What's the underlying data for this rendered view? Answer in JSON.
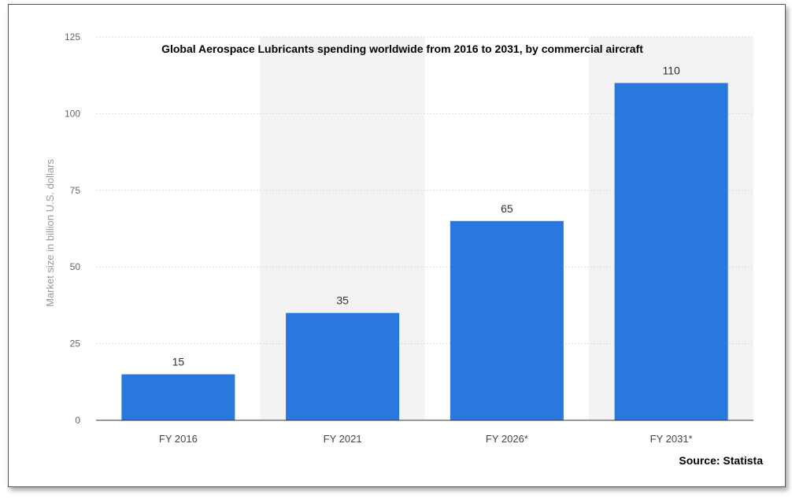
{
  "chart_data": {
    "type": "bar",
    "title": "Global Aerospace Lubricants spending worldwide from 2016 to 2031, by commercial aircraft",
    "xlabel": "",
    "ylabel": "Market size in billion U.S. dollars",
    "categories": [
      "FY 2016",
      "FY 2021",
      "FY 2026*",
      "FY 2031*"
    ],
    "values": [
      15,
      35,
      65,
      110
    ],
    "data_labels": [
      "15",
      "35",
      "65",
      "110"
    ],
    "ylim": [
      0,
      125
    ],
    "yticks": [
      "0",
      "25",
      "50",
      "75",
      "100",
      "125"
    ],
    "grid": true,
    "legend": "none",
    "source": "Source: Statista",
    "colors": {
      "bar": "#2878dd",
      "band": "#f3f3f3",
      "grid": "#dcdcdc"
    }
  }
}
